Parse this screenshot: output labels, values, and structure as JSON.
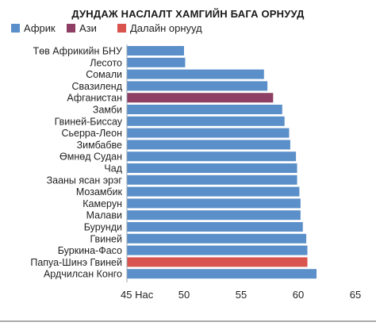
{
  "chart_data": {
    "type": "bar",
    "orientation": "horizontal",
    "title": "ДУНДАЖ НАСЛАЛТ ХАМГИЙН БАГА ОРНУУД",
    "legend": [
      {
        "name": "Африк",
        "color": "#5b8fc9"
      },
      {
        "name": "Ази",
        "color": "#8e3f63"
      },
      {
        "name": "Далайн орнууд",
        "color": "#d9534f"
      }
    ],
    "legend_position": "top-left",
    "categories": [
      "Төв Африкийн БНУ",
      "Лесото",
      "Сомали",
      "Свазиленд",
      "Афганистан",
      "Замби",
      "Гвиней-Биссау",
      "Сьерра-Леон",
      "Зимбабве",
      "Өмнөд Судан",
      "Чад",
      "Зааны ясан эрэг",
      "Мозамбик",
      "Камерун",
      "Малави",
      "Бурунди",
      "Гвиней",
      "Буркина-Фасо",
      "Папуа-Шинэ Гвиней",
      "Ардчилсан Конго"
    ],
    "values": [
      50.0,
      50.1,
      57.0,
      57.3,
      57.8,
      58.6,
      58.8,
      59.2,
      59.3,
      59.8,
      59.9,
      59.9,
      60.1,
      60.2,
      60.2,
      60.4,
      60.7,
      60.8,
      60.8,
      61.6
    ],
    "groups": [
      "Африк",
      "Африк",
      "Африк",
      "Африк",
      "Ази",
      "Африк",
      "Африк",
      "Африк",
      "Африк",
      "Африк",
      "Африк",
      "Африк",
      "Африк",
      "Африк",
      "Африк",
      "Африк",
      "Африк",
      "Африк",
      "Далайн орнууд",
      "Африк"
    ],
    "xlim": [
      45,
      65
    ],
    "xticks": [
      "45 Нас",
      "50",
      "55",
      "60",
      "65"
    ],
    "xtick_values": [
      45,
      50,
      55,
      60,
      65
    ],
    "grid": false
  }
}
